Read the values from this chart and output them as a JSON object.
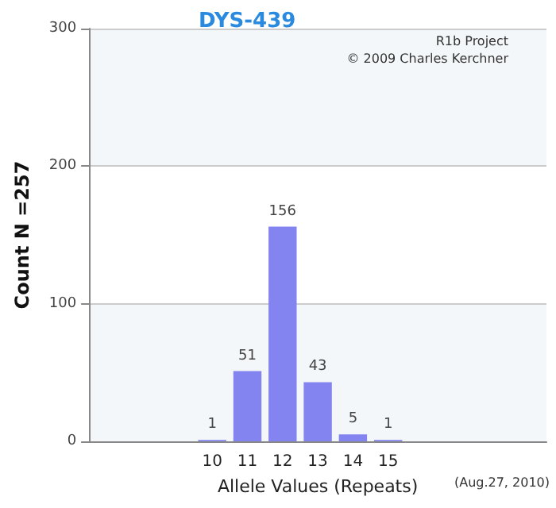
{
  "chart_data": {
    "type": "bar",
    "title": "DYS-439",
    "xlabel": "Allele Values (Repeats)",
    "ylabel": "Count N =257",
    "categories": [
      null,
      null,
      null,
      "10",
      "11",
      "12",
      "13",
      "14",
      "15",
      null,
      null,
      null,
      null
    ],
    "values": [
      null,
      null,
      null,
      1,
      51,
      156,
      43,
      5,
      1,
      null,
      null,
      null,
      null
    ],
    "color": "#8484f0",
    "data_labels": true,
    "ylim": [
      0,
      300
    ],
    "yticks": [
      0,
      100,
      200,
      300
    ],
    "grid": "y",
    "annotations": [
      "R1b Project",
      "© 2009 Charles Kerchner",
      "(Aug.27, 2010)"
    ]
  }
}
